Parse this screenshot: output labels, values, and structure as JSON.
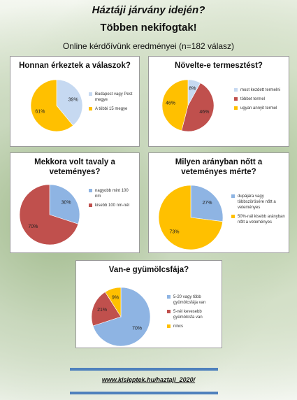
{
  "header": {
    "title": [
      "Háztáji járvány idején?",
      "Többen nekifogtak!"
    ],
    "subtitle": "Online kérdőívünk eredményei (n=182 válasz)"
  },
  "chart_data": [
    {
      "type": "pie",
      "title": "Honnan érkeztek a válaszok?",
      "categories": [
        "Budapest vagy Pest megye",
        "A többi 15 megye"
      ],
      "values": [
        39,
        61
      ],
      "value_labels": [
        "39%",
        "61%"
      ],
      "colors": [
        "#c6d9f1",
        "#ffc000"
      ]
    },
    {
      "type": "pie",
      "title": "Növelte-e termesztést?",
      "categories": [
        "most kezdett termelni",
        "többet termel",
        "ugyan annyit termel"
      ],
      "values": [
        8,
        46,
        46
      ],
      "value_labels": [
        "8%",
        "46%",
        "46%"
      ],
      "colors": [
        "#c6d9f1",
        "#c0504d",
        "#ffc000"
      ]
    },
    {
      "type": "pie",
      "title": "Mekkora volt tavaly a veteményes?",
      "categories": [
        "nagyobb mint 100 nm",
        "kisebb 100 nm-nél"
      ],
      "values": [
        30,
        70
      ],
      "value_labels": [
        "30%",
        "70%"
      ],
      "colors": [
        "#8eb4e3",
        "#c0504d"
      ]
    },
    {
      "type": "pie",
      "title": "Milyen arányban nőtt a veteményes mérte?",
      "categories": [
        "dupájára vagy többszörösére nőtt a veteményes",
        "50%-nál kisebb arányban nőtt a veteményes"
      ],
      "values": [
        27,
        73
      ],
      "value_labels": [
        "27%",
        "73%"
      ],
      "colors": [
        "#8eb4e3",
        "#ffc000"
      ]
    },
    {
      "type": "pie",
      "title": "Van-e gyümölcsfája?",
      "categories": [
        "5-20 vagy több gyümölcsfája van",
        "5-nél kevesebb gyümölcsfa van",
        "nincs"
      ],
      "values": [
        70,
        21,
        9
      ],
      "value_labels": [
        "70%",
        "21%",
        "9%"
      ],
      "colors": [
        "#8eb4e3",
        "#c0504d",
        "#ffc000"
      ]
    }
  ],
  "footer": {
    "link": "www.kisleptek.hu/haztaji_2020/"
  }
}
